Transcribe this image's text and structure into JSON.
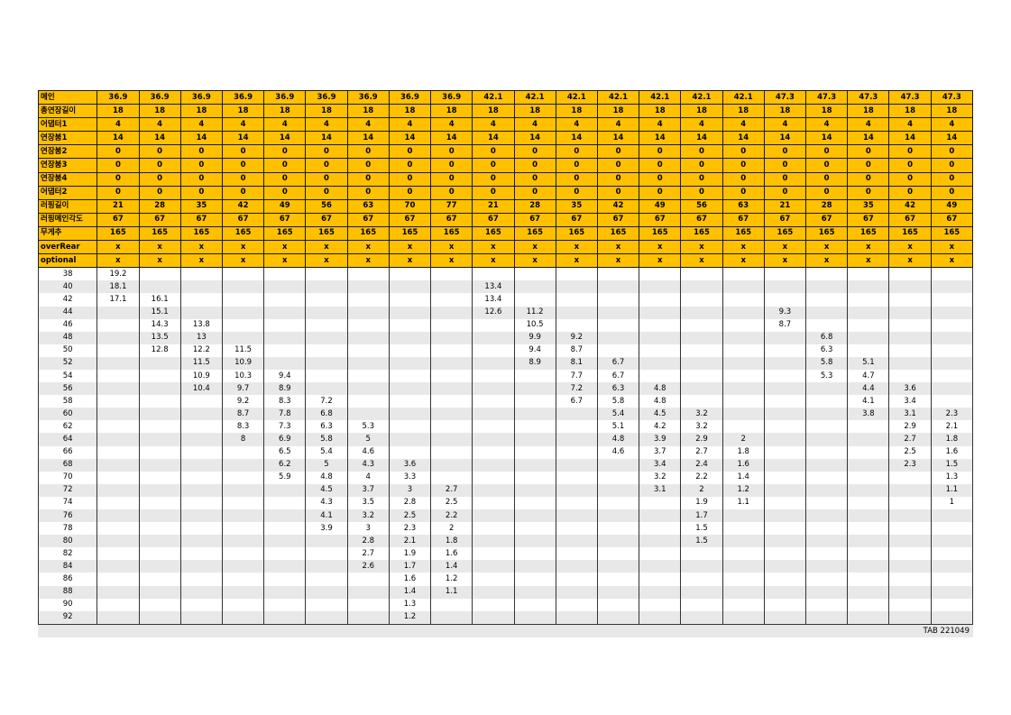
{
  "columns": [
    {
      "main": "36.9",
      "total_ext": "18",
      "adapter1": "4",
      "ext1": "14",
      "ext2": "0",
      "ext3": "0",
      "ext4": "0",
      "adapter2": "0",
      "luffing_len": "21",
      "luffing_angle": "67",
      "counterweight": "165",
      "over_rear": "x",
      "optional": "x"
    },
    {
      "main": "36.9",
      "total_ext": "18",
      "adapter1": "4",
      "ext1": "14",
      "ext2": "0",
      "ext3": "0",
      "ext4": "0",
      "adapter2": "0",
      "luffing_len": "28",
      "luffing_angle": "67",
      "counterweight": "165",
      "over_rear": "x",
      "optional": "x"
    },
    {
      "main": "36.9",
      "total_ext": "18",
      "adapter1": "4",
      "ext1": "14",
      "ext2": "0",
      "ext3": "0",
      "ext4": "0",
      "adapter2": "0",
      "luffing_len": "35",
      "luffing_angle": "67",
      "counterweight": "165",
      "over_rear": "x",
      "optional": "x"
    },
    {
      "main": "36.9",
      "total_ext": "18",
      "adapter1": "4",
      "ext1": "14",
      "ext2": "0",
      "ext3": "0",
      "ext4": "0",
      "adapter2": "0",
      "luffing_len": "42",
      "luffing_angle": "67",
      "counterweight": "165",
      "over_rear": "x",
      "optional": "x"
    },
    {
      "main": "36.9",
      "total_ext": "18",
      "adapter1": "4",
      "ext1": "14",
      "ext2": "0",
      "ext3": "0",
      "ext4": "0",
      "adapter2": "0",
      "luffing_len": "49",
      "luffing_angle": "67",
      "counterweight": "165",
      "over_rear": "x",
      "optional": "x"
    },
    {
      "main": "36.9",
      "total_ext": "18",
      "adapter1": "4",
      "ext1": "14",
      "ext2": "0",
      "ext3": "0",
      "ext4": "0",
      "adapter2": "0",
      "luffing_len": "56",
      "luffing_angle": "67",
      "counterweight": "165",
      "over_rear": "x",
      "optional": "x"
    },
    {
      "main": "36.9",
      "total_ext": "18",
      "adapter1": "4",
      "ext1": "14",
      "ext2": "0",
      "ext3": "0",
      "ext4": "0",
      "adapter2": "0",
      "luffing_len": "63",
      "luffing_angle": "67",
      "counterweight": "165",
      "over_rear": "x",
      "optional": "x"
    },
    {
      "main": "36.9",
      "total_ext": "18",
      "adapter1": "4",
      "ext1": "14",
      "ext2": "0",
      "ext3": "0",
      "ext4": "0",
      "adapter2": "0",
      "luffing_len": "70",
      "luffing_angle": "67",
      "counterweight": "165",
      "over_rear": "x",
      "optional": "x"
    },
    {
      "main": "36.9",
      "total_ext": "18",
      "adapter1": "4",
      "ext1": "14",
      "ext2": "0",
      "ext3": "0",
      "ext4": "0",
      "adapter2": "0",
      "luffing_len": "77",
      "luffing_angle": "67",
      "counterweight": "165",
      "over_rear": "x",
      "optional": "x"
    },
    {
      "main": "42.1",
      "total_ext": "18",
      "adapter1": "4",
      "ext1": "14",
      "ext2": "0",
      "ext3": "0",
      "ext4": "0",
      "adapter2": "0",
      "luffing_len": "21",
      "luffing_angle": "67",
      "counterweight": "165",
      "over_rear": "x",
      "optional": "x"
    },
    {
      "main": "42.1",
      "total_ext": "18",
      "adapter1": "4",
      "ext1": "14",
      "ext2": "0",
      "ext3": "0",
      "ext4": "0",
      "adapter2": "0",
      "luffing_len": "28",
      "luffing_angle": "67",
      "counterweight": "165",
      "over_rear": "x",
      "optional": "x"
    },
    {
      "main": "42.1",
      "total_ext": "18",
      "adapter1": "4",
      "ext1": "14",
      "ext2": "0",
      "ext3": "0",
      "ext4": "0",
      "adapter2": "0",
      "luffing_len": "35",
      "luffing_angle": "67",
      "counterweight": "165",
      "over_rear": "x",
      "optional": "x"
    },
    {
      "main": "42.1",
      "total_ext": "18",
      "adapter1": "4",
      "ext1": "14",
      "ext2": "0",
      "ext3": "0",
      "ext4": "0",
      "adapter2": "0",
      "luffing_len": "42",
      "luffing_angle": "67",
      "counterweight": "165",
      "over_rear": "x",
      "optional": "x"
    },
    {
      "main": "42.1",
      "total_ext": "18",
      "adapter1": "4",
      "ext1": "14",
      "ext2": "0",
      "ext3": "0",
      "ext4": "0",
      "adapter2": "0",
      "luffing_len": "49",
      "luffing_angle": "67",
      "counterweight": "165",
      "over_rear": "x",
      "optional": "x"
    },
    {
      "main": "42.1",
      "total_ext": "18",
      "adapter1": "4",
      "ext1": "14",
      "ext2": "0",
      "ext3": "0",
      "ext4": "0",
      "adapter2": "0",
      "luffing_len": "56",
      "luffing_angle": "67",
      "counterweight": "165",
      "over_rear": "x",
      "optional": "x"
    },
    {
      "main": "42.1",
      "total_ext": "18",
      "adapter1": "4",
      "ext1": "14",
      "ext2": "0",
      "ext3": "0",
      "ext4": "0",
      "adapter2": "0",
      "luffing_len": "63",
      "luffing_angle": "67",
      "counterweight": "165",
      "over_rear": "x",
      "optional": "x"
    },
    {
      "main": "47.3",
      "total_ext": "18",
      "adapter1": "4",
      "ext1": "14",
      "ext2": "0",
      "ext3": "0",
      "ext4": "0",
      "adapter2": "0",
      "luffing_len": "21",
      "luffing_angle": "67",
      "counterweight": "165",
      "over_rear": "x",
      "optional": "x"
    },
    {
      "main": "47.3",
      "total_ext": "18",
      "adapter1": "4",
      "ext1": "14",
      "ext2": "0",
      "ext3": "0",
      "ext4": "0",
      "adapter2": "0",
      "luffing_len": "28",
      "luffing_angle": "67",
      "counterweight": "165",
      "over_rear": "x",
      "optional": "x"
    },
    {
      "main": "47.3",
      "total_ext": "18",
      "adapter1": "4",
      "ext1": "14",
      "ext2": "0",
      "ext3": "0",
      "ext4": "0",
      "adapter2": "0",
      "luffing_len": "35",
      "luffing_angle": "67",
      "counterweight": "165",
      "over_rear": "x",
      "optional": "x"
    },
    {
      "main": "47.3",
      "total_ext": "18",
      "adapter1": "4",
      "ext1": "14",
      "ext2": "0",
      "ext3": "0",
      "ext4": "0",
      "adapter2": "0",
      "luffing_len": "42",
      "luffing_angle": "67",
      "counterweight": "165",
      "over_rear": "x",
      "optional": "x"
    },
    {
      "main": "47.3",
      "total_ext": "18",
      "adapter1": "4",
      "ext1": "14",
      "ext2": "0",
      "ext3": "0",
      "ext4": "0",
      "adapter2": "0",
      "luffing_len": "49",
      "luffing_angle": "67",
      "counterweight": "165",
      "over_rear": "x",
      "optional": "x"
    }
  ],
  "header_rows": [
    {
      "key": "main",
      "label": "메인"
    },
    {
      "key": "total_ext",
      "label": "총연장길이"
    },
    {
      "key": "adapter1",
      "label": "어댑터1"
    },
    {
      "key": "ext1",
      "label": "연장붐1"
    },
    {
      "key": "ext2",
      "label": "연장붐2"
    },
    {
      "key": "ext3",
      "label": "연장붐3"
    },
    {
      "key": "ext4",
      "label": "연장붐4"
    },
    {
      "key": "adapter2",
      "label": "어댑터2"
    },
    {
      "key": "luffing_len",
      "label": "러핑길이"
    },
    {
      "key": "luffing_angle",
      "label": "러핑메인각도"
    },
    {
      "key": "counterweight",
      "label": "무게추"
    },
    {
      "key": "over_rear",
      "label": "overRear"
    },
    {
      "key": "optional",
      "label": "optional"
    }
  ],
  "radius_rows": [
    {
      "radius": "38",
      "v": [
        "19.2",
        "",
        "",
        "",
        "",
        "",
        "",
        "",
        "",
        "",
        "",
        "",
        "",
        "",
        "",
        "",
        "",
        "",
        "",
        "",
        ""
      ]
    },
    {
      "radius": "40",
      "v": [
        "18.1",
        "",
        "",
        "",
        "",
        "",
        "",
        "",
        "",
        "13.4",
        "",
        "",
        "",
        "",
        "",
        "",
        "",
        "",
        "",
        "",
        ""
      ]
    },
    {
      "radius": "42",
      "v": [
        "17.1",
        "16.1",
        "",
        "",
        "",
        "",
        "",
        "",
        "",
        "13.4",
        "",
        "",
        "",
        "",
        "",
        "",
        "",
        "",
        "",
        "",
        ""
      ]
    },
    {
      "radius": "44",
      "v": [
        "",
        "15.1",
        "",
        "",
        "",
        "",
        "",
        "",
        "",
        "12.6",
        "11.2",
        "",
        "",
        "",
        "",
        "",
        "9.3",
        "",
        "",
        "",
        ""
      ]
    },
    {
      "radius": "46",
      "v": [
        "",
        "14.3",
        "13.8",
        "",
        "",
        "",
        "",
        "",
        "",
        "",
        "10.5",
        "",
        "",
        "",
        "",
        "",
        "8.7",
        "",
        "",
        "",
        ""
      ]
    },
    {
      "radius": "48",
      "v": [
        "",
        "13.5",
        "13",
        "",
        "",
        "",
        "",
        "",
        "",
        "",
        "9.9",
        "9.2",
        "",
        "",
        "",
        "",
        "",
        "6.8",
        "",
        "",
        ""
      ]
    },
    {
      "radius": "50",
      "v": [
        "",
        "12.8",
        "12.2",
        "11.5",
        "",
        "",
        "",
        "",
        "",
        "",
        "9.4",
        "8.7",
        "",
        "",
        "",
        "",
        "",
        "6.3",
        "",
        "",
        ""
      ]
    },
    {
      "radius": "52",
      "v": [
        "",
        "",
        "11.5",
        "10.9",
        "",
        "",
        "",
        "",
        "",
        "",
        "8.9",
        "8.1",
        "6.7",
        "",
        "",
        "",
        "",
        "5.8",
        "5.1",
        "",
        ""
      ]
    },
    {
      "radius": "54",
      "v": [
        "",
        "",
        "10.9",
        "10.3",
        "9.4",
        "",
        "",
        "",
        "",
        "",
        "",
        "7.7",
        "6.7",
        "",
        "",
        "",
        "",
        "5.3",
        "4.7",
        "",
        ""
      ]
    },
    {
      "radius": "56",
      "v": [
        "",
        "",
        "10.4",
        "9.7",
        "8.9",
        "",
        "",
        "",
        "",
        "",
        "",
        "7.2",
        "6.3",
        "4.8",
        "",
        "",
        "",
        "",
        "4.4",
        "3.6",
        ""
      ]
    },
    {
      "radius": "58",
      "v": [
        "",
        "",
        "",
        "9.2",
        "8.3",
        "7.2",
        "",
        "",
        "",
        "",
        "",
        "6.7",
        "5.8",
        "4.8",
        "",
        "",
        "",
        "",
        "4.1",
        "3.4",
        ""
      ]
    },
    {
      "radius": "60",
      "v": [
        "",
        "",
        "",
        "8.7",
        "7.8",
        "6.8",
        "",
        "",
        "",
        "",
        "",
        "",
        "5.4",
        "4.5",
        "3.2",
        "",
        "",
        "",
        "3.8",
        "3.1",
        "2.3"
      ]
    },
    {
      "radius": "62",
      "v": [
        "",
        "",
        "",
        "8.3",
        "7.3",
        "6.3",
        "5.3",
        "",
        "",
        "",
        "",
        "",
        "5.1",
        "4.2",
        "3.2",
        "",
        "",
        "",
        "",
        "2.9",
        "2.1"
      ]
    },
    {
      "radius": "64",
      "v": [
        "",
        "",
        "",
        "8",
        "6.9",
        "5.8",
        "5",
        "",
        "",
        "",
        "",
        "",
        "4.8",
        "3.9",
        "2.9",
        "2",
        "",
        "",
        "",
        "2.7",
        "1.8"
      ]
    },
    {
      "radius": "66",
      "v": [
        "",
        "",
        "",
        "",
        "6.5",
        "5.4",
        "4.6",
        "",
        "",
        "",
        "",
        "",
        "4.6",
        "3.7",
        "2.7",
        "1.8",
        "",
        "",
        "",
        "2.5",
        "1.6"
      ]
    },
    {
      "radius": "68",
      "v": [
        "",
        "",
        "",
        "",
        "6.2",
        "5",
        "4.3",
        "3.6",
        "",
        "",
        "",
        "",
        "",
        "3.4",
        "2.4",
        "1.6",
        "",
        "",
        "",
        "2.3",
        "1.5"
      ]
    },
    {
      "radius": "70",
      "v": [
        "",
        "",
        "",
        "",
        "5.9",
        "4.8",
        "4",
        "3.3",
        "",
        "",
        "",
        "",
        "",
        "3.2",
        "2.2",
        "1.4",
        "",
        "",
        "",
        "",
        "1.3"
      ]
    },
    {
      "radius": "72",
      "v": [
        "",
        "",
        "",
        "",
        "",
        "4.5",
        "3.7",
        "3",
        "2.7",
        "",
        "",
        "",
        "",
        "3.1",
        "2",
        "1.2",
        "",
        "",
        "",
        "",
        "1.1"
      ]
    },
    {
      "radius": "74",
      "v": [
        "",
        "",
        "",
        "",
        "",
        "4.3",
        "3.5",
        "2.8",
        "2.5",
        "",
        "",
        "",
        "",
        "",
        "1.9",
        "1.1",
        "",
        "",
        "",
        "",
        "1"
      ]
    },
    {
      "radius": "76",
      "v": [
        "",
        "",
        "",
        "",
        "",
        "4.1",
        "3.2",
        "2.5",
        "2.2",
        "",
        "",
        "",
        "",
        "",
        "1.7",
        "",
        "",
        "",
        "",
        "",
        ""
      ]
    },
    {
      "radius": "78",
      "v": [
        "",
        "",
        "",
        "",
        "",
        "3.9",
        "3",
        "2.3",
        "2",
        "",
        "",
        "",
        "",
        "",
        "1.5",
        "",
        "",
        "",
        "",
        "",
        ""
      ]
    },
    {
      "radius": "80",
      "v": [
        "",
        "",
        "",
        "",
        "",
        "",
        "2.8",
        "2.1",
        "1.8",
        "",
        "",
        "",
        "",
        "",
        "1.5",
        "",
        "",
        "",
        "",
        "",
        ""
      ]
    },
    {
      "radius": "82",
      "v": [
        "",
        "",
        "",
        "",
        "",
        "",
        "2.7",
        "1.9",
        "1.6",
        "",
        "",
        "",
        "",
        "",
        "",
        "",
        "",
        "",
        "",
        "",
        ""
      ]
    },
    {
      "radius": "84",
      "v": [
        "",
        "",
        "",
        "",
        "",
        "",
        "2.6",
        "1.7",
        "1.4",
        "",
        "",
        "",
        "",
        "",
        "",
        "",
        "",
        "",
        "",
        "",
        ""
      ]
    },
    {
      "radius": "86",
      "v": [
        "",
        "",
        "",
        "",
        "",
        "",
        "",
        "1.6",
        "1.2",
        "",
        "",
        "",
        "",
        "",
        "",
        "",
        "",
        "",
        "",
        "",
        ""
      ]
    },
    {
      "radius": "88",
      "v": [
        "",
        "",
        "",
        "",
        "",
        "",
        "",
        "1.4",
        "1.1",
        "",
        "",
        "",
        "",
        "",
        "",
        "",
        "",
        "",
        "",
        "",
        ""
      ]
    },
    {
      "radius": "90",
      "v": [
        "",
        "",
        "",
        "",
        "",
        "",
        "",
        "1.3",
        "",
        "",
        "",
        "",
        "",
        "",
        "",
        "",
        "",
        "",
        "",
        "",
        ""
      ]
    },
    {
      "radius": "92",
      "v": [
        "",
        "",
        "",
        "",
        "",
        "",
        "",
        "1.2",
        "",
        "",
        "",
        "",
        "",
        "",
        "",
        "",
        "",
        "",
        "",
        "",
        ""
      ]
    }
  ],
  "footer": {
    "code": "TAB 221049"
  },
  "colors": {
    "header_bg": "#ffc000",
    "stripe_bg": "#e8e8e8"
  }
}
